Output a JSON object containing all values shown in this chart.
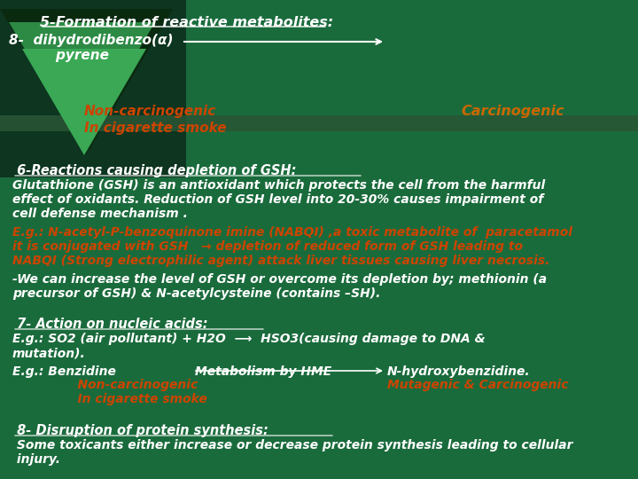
{
  "bg_color": "#1a6b3c",
  "title_line": "5-Formation of reactive metabolites:",
  "title_color": "#ffffff",
  "title_fontsize": 11.5,
  "line2": "8-  dihydrodibenzo(α)",
  "line3": "    pyrene",
  "line_color": "#ffffff",
  "line_fontsize": 11,
  "non_carc_text": "Non-carcinogenic",
  "non_carc_color": "#cc4400",
  "in_cig_text": "In cigarette smoke",
  "in_cig_color": "#cc4400",
  "carc_text": "Carcinogenic",
  "carc_color": "#cc6600",
  "orange_color": "#cc4400",
  "white_color": "#ffffff",
  "body_fontsize": 10,
  "section6_title": " 6-Reactions causing depletion of GSH:",
  "section6_body": "Glutathione (GSH) is an antioxidant which protects the cell from the harmful\neffect of oxidants. Reduction of GSH level into 20-30% causes impairment of\ncell defense mechanism .",
  "section6_eg1": "E.g.: N-acetyl-P-benzoquinone imine (NABQI) ,a toxic metabolite of  paracetamol\nit is conjugated with GSH   → depletion of reduced form of GSH leading to\nNABQI (Strong electrophilic agent) attack liver tissues causing liver necrosis.",
  "section6_eg2": "-We can increase the level of GSH or overcome its depletion by; methionin (a\nprecursor of GSH) & N-acetylcysteine (contains –SH).",
  "section7_title": " 7- Action on nucleic acids:",
  "section7_eg1": "E.g.: SO2 (air pollutant) + H2O  ⟶  HSO3(causing damage to DNA &\nmutation).",
  "section7_eg2_left": "E.g.: Benzidine",
  "section7_eg2_mid": "Metabolism by HME",
  "section7_eg2_right": "N-hydroxybenzidine.",
  "section7_non_carc": "    Non-carcinogenic",
  "section7_mut_carc": "Mutagenic & Carcinogenic",
  "section7_in_cig": "    In cigarette smoke",
  "section8_title": " 8- Disruption of protein synthesis:",
  "section8_body": " Some toxicants either increase or decrease protein synthesis leading to cellular\n injury."
}
